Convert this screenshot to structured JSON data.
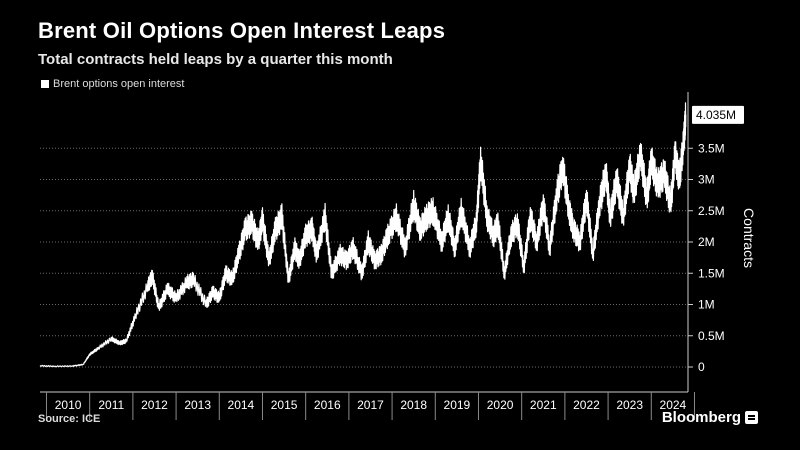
{
  "chart_data": {
    "type": "line",
    "title": "Brent Oil Options Open Interest Leaps",
    "subtitle": "Total contracts held leaps by a quarter this month",
    "legend": [
      "Brent options open interest"
    ],
    "ylabel": "Contracts",
    "xlabel": "",
    "ylim": [
      -400000,
      4400000
    ],
    "xlim": [
      2009.85,
      2024.85
    ],
    "y_ticks": [
      0,
      500000,
      1000000,
      1500000,
      2000000,
      2500000,
      3000000,
      3500000
    ],
    "y_tick_labels": [
      "0",
      "0.5M",
      "1M",
      "1.5M",
      "2M",
      "2.5M",
      "3M",
      "3.5M"
    ],
    "x_tick_labels": [
      "2010",
      "2011",
      "2012",
      "2013",
      "2014",
      "2015",
      "2016",
      "2017",
      "2018",
      "2019",
      "2020",
      "2021",
      "2022",
      "2023",
      "2024"
    ],
    "grid": true,
    "last_value_label": "4.035M",
    "series": [
      {
        "name": "Brent options open interest",
        "x": [
          2009.85,
          2010.2,
          2010.6,
          2010.85,
          2011.0,
          2011.2,
          2011.5,
          2011.7,
          2011.85,
          2012.05,
          2012.35,
          2012.45,
          2012.6,
          2012.8,
          2013.0,
          2013.25,
          2013.4,
          2013.7,
          2013.85,
          2014.0,
          2014.15,
          2014.3,
          2014.45,
          2014.6,
          2014.75,
          2014.9,
          2015.0,
          2015.15,
          2015.3,
          2015.45,
          2015.6,
          2015.75,
          2015.85,
          2016.0,
          2016.15,
          2016.25,
          2016.45,
          2016.6,
          2016.8,
          2016.95,
          2017.1,
          2017.3,
          2017.45,
          2017.6,
          2017.75,
          2017.9,
          2018.1,
          2018.3,
          2018.5,
          2018.65,
          2018.8,
          2018.95,
          2019.15,
          2019.3,
          2019.45,
          2019.6,
          2019.8,
          2019.95,
          2020.05,
          2020.2,
          2020.35,
          2020.45,
          2020.6,
          2020.75,
          2020.9,
          2021.05,
          2021.2,
          2021.35,
          2021.5,
          2021.65,
          2021.8,
          2021.95,
          2022.1,
          2022.2,
          2022.35,
          2022.5,
          2022.65,
          2022.8,
          2022.95,
          2023.05,
          2023.2,
          2023.35,
          2023.5,
          2023.6,
          2023.75,
          2023.9,
          2024.0,
          2024.15,
          2024.3,
          2024.45,
          2024.55,
          2024.65,
          2024.75,
          2024.8
        ],
        "values": [
          20000,
          10000,
          15000,
          40000,
          200000,
          300000,
          450000,
          380000,
          420000,
          800000,
          1300000,
          1450000,
          950000,
          1250000,
          1100000,
          1350000,
          1400000,
          1000000,
          1200000,
          1100000,
          1500000,
          1400000,
          1800000,
          2200000,
          2300000,
          2000000,
          2350000,
          1700000,
          2200000,
          2400000,
          1400000,
          1900000,
          1700000,
          2100000,
          2200000,
          1800000,
          2400000,
          1500000,
          1800000,
          1700000,
          1900000,
          1500000,
          2000000,
          1700000,
          1800000,
          2100000,
          2400000,
          1900000,
          2600000,
          2200000,
          2400000,
          2500000,
          2000000,
          2400000,
          1900000,
          2500000,
          1900000,
          2300000,
          3300000,
          2400000,
          2100000,
          2300000,
          1500000,
          2100000,
          2300000,
          1600000,
          2400000,
          2000000,
          2600000,
          1900000,
          2700000,
          3200000,
          2500000,
          2200000,
          2000000,
          2700000,
          1800000,
          2600000,
          3100000,
          2400000,
          3000000,
          2400000,
          3200000,
          2800000,
          3400000,
          2700000,
          3300000,
          2900000,
          3100000,
          2600000,
          3400000,
          3000000,
          3600000,
          4035000
        ]
      }
    ]
  },
  "footer": {
    "source": "Source: ICE",
    "brand": "Bloomberg"
  }
}
